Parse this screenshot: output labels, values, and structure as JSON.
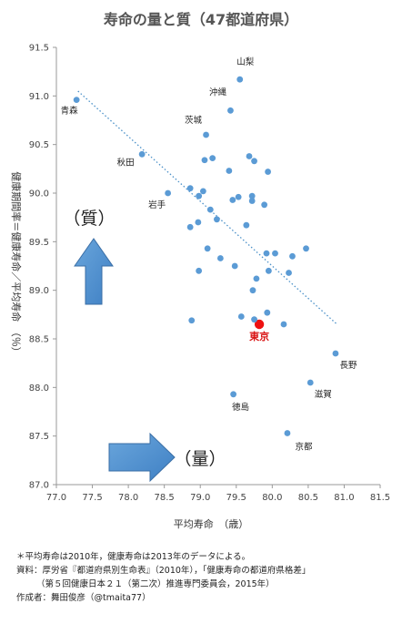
{
  "title": "寿命の量と質（47都道府県）",
  "chart_data": {
    "type": "scatter",
    "xlabel": "平均寿命　（歳）",
    "ylabel": "健康期間率＝健康寿命／平均寿命　（％）",
    "xlim": [
      77.0,
      81.5
    ],
    "ylim": [
      87.0,
      91.5
    ],
    "xticks": [
      "77.0",
      "77.5",
      "78.0",
      "78.5",
      "79.0",
      "79.5",
      "80.0",
      "80.5",
      "81.0",
      "81.5"
    ],
    "yticks": [
      "87.0",
      "87.5",
      "88.0",
      "88.5",
      "89.0",
      "89.5",
      "90.0",
      "90.5",
      "91.0",
      "91.5"
    ],
    "grid": false,
    "trendline": {
      "style": "dotted",
      "color": "#4a90c8",
      "x": [
        77.3,
        80.9
      ],
      "y": [
        91.05,
        88.65
      ]
    },
    "point_color": "#5b9bd5",
    "highlight_color": "#ee1111",
    "points": [
      {
        "x": 79.55,
        "y": 91.17,
        "label": "山梨"
      },
      {
        "x": 79.42,
        "y": 90.85,
        "label": "沖縄"
      },
      {
        "x": 77.28,
        "y": 90.96,
        "label": "青森"
      },
      {
        "x": 79.08,
        "y": 90.6,
        "label": "茨城"
      },
      {
        "x": 78.19,
        "y": 90.4,
        "label": "秋田"
      },
      {
        "x": 78.55,
        "y": 90.0,
        "label": "岩手"
      },
      {
        "x": 79.82,
        "y": 88.65,
        "label": "東京",
        "highlight": true
      },
      {
        "x": 80.88,
        "y": 88.35,
        "label": "長野"
      },
      {
        "x": 80.53,
        "y": 88.05,
        "label": "滋賀"
      },
      {
        "x": 79.46,
        "y": 87.93,
        "label": "徳島"
      },
      {
        "x": 80.21,
        "y": 87.53,
        "label": "京都"
      },
      {
        "x": 79.06,
        "y": 90.34
      },
      {
        "x": 79.17,
        "y": 90.36
      },
      {
        "x": 79.4,
        "y": 90.23
      },
      {
        "x": 79.68,
        "y": 90.38
      },
      {
        "x": 79.75,
        "y": 90.33
      },
      {
        "x": 79.94,
        "y": 90.22
      },
      {
        "x": 78.86,
        "y": 90.05
      },
      {
        "x": 78.98,
        "y": 89.97
      },
      {
        "x": 79.04,
        "y": 90.02
      },
      {
        "x": 79.45,
        "y": 89.93
      },
      {
        "x": 79.53,
        "y": 89.96
      },
      {
        "x": 79.72,
        "y": 89.97
      },
      {
        "x": 79.72,
        "y": 89.92
      },
      {
        "x": 79.89,
        "y": 89.88
      },
      {
        "x": 79.14,
        "y": 89.83
      },
      {
        "x": 79.23,
        "y": 89.73
      },
      {
        "x": 78.97,
        "y": 89.7
      },
      {
        "x": 78.86,
        "y": 89.65
      },
      {
        "x": 79.64,
        "y": 89.67
      },
      {
        "x": 79.1,
        "y": 89.43
      },
      {
        "x": 79.28,
        "y": 89.33
      },
      {
        "x": 79.92,
        "y": 89.38
      },
      {
        "x": 80.04,
        "y": 89.38
      },
      {
        "x": 80.47,
        "y": 89.43
      },
      {
        "x": 80.28,
        "y": 89.35
      },
      {
        "x": 79.48,
        "y": 89.25
      },
      {
        "x": 79.95,
        "y": 89.2
      },
      {
        "x": 78.98,
        "y": 89.2
      },
      {
        "x": 80.23,
        "y": 89.18
      },
      {
        "x": 79.78,
        "y": 89.12
      },
      {
        "x": 79.73,
        "y": 89.0
      },
      {
        "x": 78.88,
        "y": 88.69
      },
      {
        "x": 79.57,
        "y": 88.73
      },
      {
        "x": 79.75,
        "y": 88.7
      },
      {
        "x": 79.93,
        "y": 88.77
      },
      {
        "x": 80.16,
        "y": 88.65
      }
    ]
  },
  "annotations": {
    "quality": "（質）",
    "quantity": "（量）"
  },
  "notes": {
    "line1": "＊平均寿命は2010年，健康寿命は2013年のデータによる。",
    "line2": "資料：厚労省『都道府県別生命表』（2010年），「健康寿命の都道府県格差」",
    "line3": "（第５回健康日本２１（第二次）推進専門委員会，2015年）",
    "line4": "作成者：舞田俊彦（@tmaita77）"
  }
}
